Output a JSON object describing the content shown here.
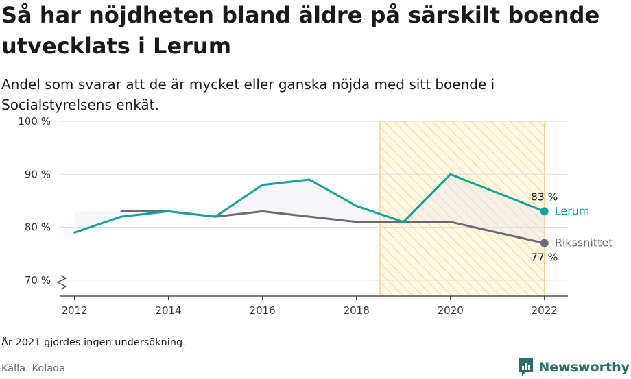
{
  "header": {
    "title": "Så har nöjdheten bland äldre på särskilt boende utvecklats i Lerum",
    "subtitle": "Andel som svarar att de är mycket eller ganska nöjda med sitt boende i Socialstyrelsens enkät."
  },
  "footer": {
    "note": "År 2021 gjordes ingen undersökning.",
    "source": "Källa: Kolada",
    "brand": "Newsworthy"
  },
  "colors": {
    "lerum": "#12a39a",
    "riks": "#6e6a74",
    "highlight_stroke": "#f3cf6b",
    "highlight_fill": "#fff6dc",
    "grid": "#dddddd",
    "brand": "#2b6f6b"
  },
  "icons": {
    "brand_logo": "bar-chart-speech-bubble-icon",
    "axis_break": "axis-break-icon"
  },
  "chart_data": {
    "type": "line",
    "title": "",
    "xlabel": "",
    "ylabel": "",
    "xlim": [
      2011.7,
      2022.5
    ],
    "ylim": [
      67,
      100
    ],
    "y_ticks": [
      70,
      80,
      90,
      100
    ],
    "y_tick_labels": [
      "70 %",
      "80 %",
      "90 %",
      "100 %"
    ],
    "x_ticks": [
      2012,
      2014,
      2016,
      2018,
      2020,
      2022
    ],
    "x_tick_labels": [
      "2012",
      "2014",
      "2016",
      "2018",
      "2020",
      "2022"
    ],
    "grid": true,
    "highlight_range": [
      2018.5,
      2022
    ],
    "series": [
      {
        "name": "Lerum",
        "color": "#12a39a",
        "x": [
          2012,
          2013,
          2014,
          2015,
          2016,
          2017,
          2018,
          2019,
          2020,
          2022
        ],
        "values": [
          79,
          82,
          83,
          82,
          88,
          89,
          84,
          81,
          90,
          83
        ],
        "end_label": "83 %"
      },
      {
        "name": "Rikssnittet",
        "color": "#6e6a74",
        "x": [
          2013,
          2014,
          2015,
          2016,
          2017,
          2018,
          2019,
          2020,
          2022
        ],
        "values": [
          83,
          83,
          82,
          83,
          82,
          81,
          81,
          81,
          77
        ],
        "end_label": "77 %"
      }
    ]
  }
}
